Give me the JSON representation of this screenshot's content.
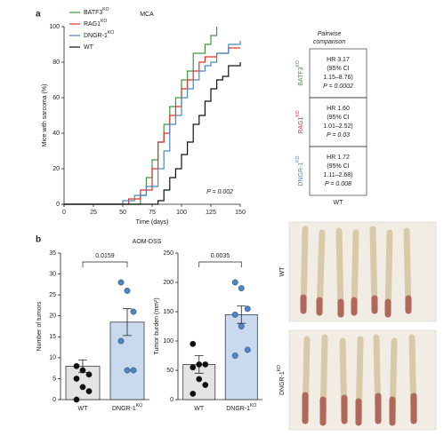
{
  "panel_labels": [
    "a",
    "b"
  ],
  "panel_b_title": "AOM-DSS",
  "chart_data": [
    {
      "type": "line",
      "step": true,
      "title": "MCA",
      "xlabel": "Time (days)",
      "ylabel": "Mice with sarcoma (%)",
      "xlim": [
        0,
        150
      ],
      "xticks": [
        0,
        25,
        50,
        75,
        100,
        125,
        150
      ],
      "ylim": [
        0,
        100
      ],
      "yticks": [
        0,
        20,
        40,
        60,
        80,
        100
      ],
      "annotation": "P = 0.002",
      "series": [
        {
          "name": "BATF3",
          "superscript": "KO",
          "color": "#3a9a3a",
          "x": [
            0,
            65,
            70,
            75,
            80,
            85,
            90,
            95,
            100,
            105,
            110,
            120,
            125,
            130
          ],
          "values": [
            0,
            5,
            15,
            25,
            35,
            45,
            55,
            60,
            70,
            75,
            85,
            90,
            95,
            100
          ]
        },
        {
          "name": "RAG1",
          "superscript": "KO",
          "color": "#e0302a",
          "x": [
            0,
            55,
            65,
            75,
            80,
            85,
            90,
            95,
            100,
            105,
            110,
            115,
            120,
            130,
            140,
            150
          ],
          "values": [
            0,
            3,
            8,
            20,
            35,
            40,
            50,
            55,
            65,
            70,
            75,
            80,
            83,
            85,
            88,
            88
          ]
        },
        {
          "name": "DNGR-1",
          "superscript": "KO",
          "color": "#4a86c8",
          "x": [
            0,
            50,
            60,
            70,
            80,
            85,
            90,
            95,
            100,
            105,
            110,
            115,
            120,
            125,
            130,
            140,
            150
          ],
          "values": [
            0,
            2,
            5,
            10,
            20,
            30,
            45,
            50,
            60,
            65,
            70,
            75,
            78,
            80,
            85,
            90,
            92
          ]
        },
        {
          "name": "WT",
          "color": "#111111",
          "x": [
            0,
            80,
            85,
            90,
            95,
            100,
            105,
            110,
            115,
            120,
            125,
            130,
            135,
            140,
            150
          ],
          "values": [
            0,
            2,
            8,
            15,
            20,
            28,
            35,
            45,
            50,
            58,
            65,
            70,
            72,
            78,
            80
          ]
        }
      ]
    },
    {
      "type": "bar",
      "ylabel": "Number of tumors",
      "ylim": [
        0,
        35
      ],
      "yticks": [
        0,
        5,
        10,
        15,
        20,
        25,
        30,
        35
      ],
      "categories": [
        {
          "name": "WT"
        },
        {
          "name": "DNGR-1",
          "superscript": "KO"
        }
      ],
      "values": [
        8,
        18.5
      ],
      "errors": [
        1.5,
        3.2
      ],
      "colors": [
        "#e4e4e4",
        "#c9d9ee"
      ],
      "point_colors": [
        "#111111",
        "#4a86c8"
      ],
      "points": [
        [
          8,
          7,
          6,
          5,
          3,
          2,
          0
        ],
        [
          28,
          26,
          21,
          14,
          7,
          7
        ]
      ],
      "annotation": "0.0159"
    },
    {
      "type": "bar",
      "ylabel": "Tumor burden (mm²)",
      "ylim": [
        0,
        250
      ],
      "yticks": [
        0,
        50,
        100,
        150,
        200,
        250
      ],
      "categories": [
        {
          "name": "WT"
        },
        {
          "name": "DNGR-1",
          "superscript": "KO"
        }
      ],
      "values": [
        60,
        145
      ],
      "errors": [
        15,
        15
      ],
      "colors": [
        "#e4e4e4",
        "#c9d9ee"
      ],
      "point_colors": [
        "#111111",
        "#4a86c8"
      ],
      "points": [
        [
          95,
          60,
          60,
          55,
          35,
          25,
          10
        ],
        [
          200,
          190,
          155,
          145,
          125,
          85,
          75
        ]
      ],
      "annotation": "0.0035"
    }
  ],
  "hr_table": {
    "header": [
      "Pairwise",
      "comparison"
    ],
    "footer": "WT",
    "rows": [
      {
        "group": {
          "name": "BATF3",
          "superscript": "KO"
        },
        "color": "#3a9a3a",
        "lines": [
          "HR 3.17",
          "(95% CI",
          "1.15–8.76)",
          "P = 0.0002"
        ]
      },
      {
        "group": {
          "name": "RAG1",
          "superscript": "KO"
        },
        "color": "#e0302a",
        "lines": [
          "HR 1.60",
          "(95% CI",
          "1.01–2.52)",
          "P = 0.03"
        ]
      },
      {
        "group": {
          "name": "DNGR-1",
          "superscript": "KO"
        },
        "color": "#4a86c8",
        "lines": [
          "HR 1.72",
          "(95% CI",
          "1.11–2.68)",
          "P = 0.008"
        ]
      }
    ]
  },
  "photos": [
    {
      "name": "WT"
    },
    {
      "name": "DNGR-1",
      "superscript": "KO"
    }
  ]
}
